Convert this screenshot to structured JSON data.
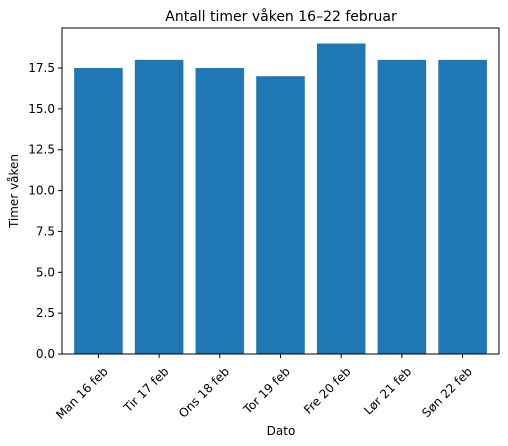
{
  "chart_data": {
    "type": "bar",
    "title": "Antall timer våken 16–22 februar",
    "xlabel": "Dato",
    "ylabel": "Timer våken",
    "categories": [
      "Man 16 feb",
      "Tir 17 feb",
      "Ons 18 feb",
      "Tor 19 feb",
      "Fre 20 feb",
      "Lør 21 feb",
      "Søn 22 feb"
    ],
    "values": [
      17.5,
      18,
      17.5,
      17,
      19,
      18,
      18
    ],
    "yticks": [
      "0.0",
      "2.5",
      "5.0",
      "7.5",
      "10.0",
      "12.5",
      "15.0",
      "17.5"
    ],
    "ylim": [
      0,
      19.95
    ],
    "grid": false,
    "bar_color": "#1f77b4"
  }
}
